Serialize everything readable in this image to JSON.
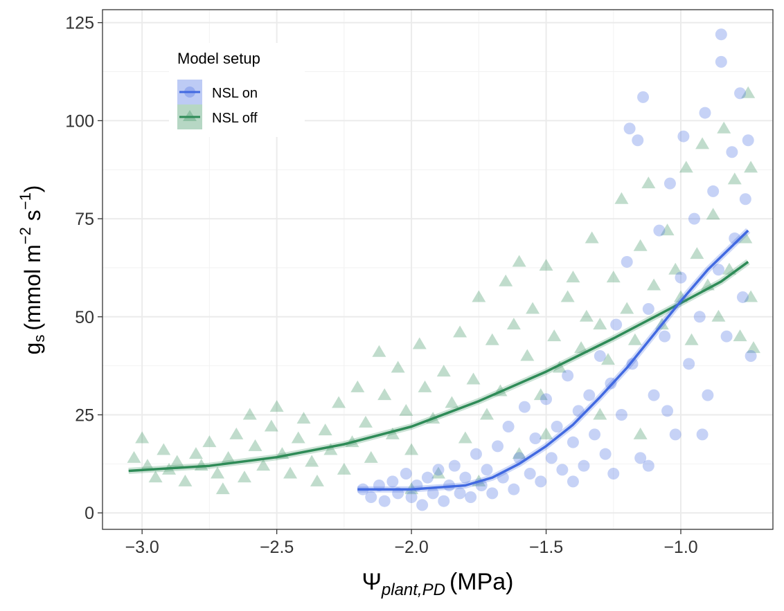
{
  "chart_data": {
    "type": "scatter",
    "title": "",
    "xlabel": {
      "symbol": "Ψ",
      "subscript": "plant,PD",
      "unit": "(MPa)"
    },
    "ylabel": {
      "symbol": "g",
      "subscript": "s",
      "unit_pre": "(mmol m",
      "exp1": "−2",
      "mid": " s",
      "exp2": "−1",
      "unit_post": ")"
    },
    "xlim": [
      -3.147,
      -0.658
    ],
    "ylim": [
      -4.2,
      128.3
    ],
    "xticks": [
      -3.0,
      -2.5,
      -2.0,
      -1.5,
      -1.0
    ],
    "xtick_labels": [
      "−3.0",
      "−2.5",
      "−2.0",
      "−1.5",
      "−1.0"
    ],
    "yticks": [
      0,
      25,
      50,
      75,
      100,
      125
    ],
    "ytick_labels": [
      "0",
      "25",
      "50",
      "75",
      "100",
      "125"
    ],
    "grid": true,
    "legend": {
      "title": "Model setup",
      "placement": "top-left"
    },
    "series": [
      {
        "name": "NSL off",
        "color": "#2E8B57",
        "marker": "triangle",
        "fit": [
          [
            -3.05,
            10.7
          ],
          [
            -2.75,
            12
          ],
          [
            -2.5,
            14.2
          ],
          [
            -2.25,
            17.5
          ],
          [
            -2.0,
            22
          ],
          [
            -1.75,
            28.5
          ],
          [
            -1.5,
            36
          ],
          [
            -1.25,
            44.5
          ],
          [
            -1.0,
            53.5
          ],
          [
            -0.85,
            59
          ],
          [
            -0.75,
            64
          ]
        ],
        "points": [
          [
            -3.03,
            14
          ],
          [
            -3.0,
            19
          ],
          [
            -2.98,
            12
          ],
          [
            -2.95,
            9
          ],
          [
            -2.92,
            16
          ],
          [
            -2.9,
            11
          ],
          [
            -2.87,
            13
          ],
          [
            -2.84,
            8
          ],
          [
            -2.8,
            15
          ],
          [
            -2.78,
            12
          ],
          [
            -2.75,
            18
          ],
          [
            -2.72,
            10
          ],
          [
            -2.7,
            6
          ],
          [
            -2.68,
            14
          ],
          [
            -2.65,
            20
          ],
          [
            -2.62,
            9
          ],
          [
            -2.6,
            25
          ],
          [
            -2.58,
            17
          ],
          [
            -2.55,
            12
          ],
          [
            -2.52,
            22
          ],
          [
            -2.5,
            27
          ],
          [
            -2.48,
            15
          ],
          [
            -2.45,
            10
          ],
          [
            -2.42,
            19
          ],
          [
            -2.4,
            24
          ],
          [
            -2.37,
            13
          ],
          [
            -2.35,
            8
          ],
          [
            -2.32,
            21
          ],
          [
            -2.3,
            16
          ],
          [
            -2.27,
            28
          ],
          [
            -2.25,
            11
          ],
          [
            -2.22,
            18
          ],
          [
            -2.2,
            32
          ],
          [
            -2.17,
            23
          ],
          [
            -2.15,
            14
          ],
          [
            -2.12,
            41
          ],
          [
            -2.1,
            30
          ],
          [
            -2.07,
            20
          ],
          [
            -2.05,
            37
          ],
          [
            -2.02,
            26
          ],
          [
            -2.0,
            16
          ],
          [
            -1.97,
            43
          ],
          [
            -1.95,
            32
          ],
          [
            -1.92,
            24
          ],
          [
            -1.9,
            10
          ],
          [
            -1.88,
            36
          ],
          [
            -1.85,
            28
          ],
          [
            -1.82,
            46
          ],
          [
            -1.8,
            19
          ],
          [
            -1.77,
            34
          ],
          [
            -1.75,
            55
          ],
          [
            -1.72,
            25
          ],
          [
            -1.7,
            44
          ],
          [
            -1.67,
            31
          ],
          [
            -1.65,
            59
          ],
          [
            -1.62,
            48
          ],
          [
            -1.6,
            64
          ],
          [
            -1.57,
            40
          ],
          [
            -1.55,
            52
          ],
          [
            -1.52,
            30
          ],
          [
            -1.5,
            63
          ],
          [
            -1.47,
            45
          ],
          [
            -1.45,
            37
          ],
          [
            -1.42,
            55
          ],
          [
            -1.4,
            60
          ],
          [
            -1.37,
            42
          ],
          [
            -1.35,
            50
          ],
          [
            -1.33,
            70
          ],
          [
            -1.3,
            48
          ],
          [
            -1.27,
            39
          ],
          [
            -1.25,
            60
          ],
          [
            -1.22,
            80
          ],
          [
            -1.2,
            52
          ],
          [
            -1.17,
            44
          ],
          [
            -1.15,
            68
          ],
          [
            -1.12,
            84
          ],
          [
            -1.1,
            58
          ],
          [
            -1.07,
            48
          ],
          [
            -1.05,
            72
          ],
          [
            -1.02,
            62
          ],
          [
            -1.0,
            55
          ],
          [
            -0.98,
            88
          ],
          [
            -0.96,
            44
          ],
          [
            -0.94,
            66
          ],
          [
            -0.92,
            94
          ],
          [
            -0.9,
            58
          ],
          [
            -0.88,
            76
          ],
          [
            -0.86,
            50
          ],
          [
            -0.84,
            98
          ],
          [
            -0.82,
            62
          ],
          [
            -0.8,
            85
          ],
          [
            -0.78,
            45
          ],
          [
            -0.76,
            70
          ],
          [
            -0.75,
            107
          ],
          [
            -0.74,
            55
          ],
          [
            -0.74,
            88
          ],
          [
            -0.73,
            42
          ],
          [
            -1.15,
            20
          ],
          [
            -1.3,
            25
          ],
          [
            -1.5,
            20
          ],
          [
            -1.6,
            15
          ],
          [
            -1.75,
            8
          ],
          [
            -2.0,
            6
          ]
        ]
      },
      {
        "name": "NSL on",
        "color": "#4169E1",
        "marker": "circle",
        "fit": [
          [
            -2.2,
            6
          ],
          [
            -2.0,
            6
          ],
          [
            -1.8,
            7
          ],
          [
            -1.7,
            9
          ],
          [
            -1.6,
            12.5
          ],
          [
            -1.5,
            17
          ],
          [
            -1.4,
            22.5
          ],
          [
            -1.3,
            29.5
          ],
          [
            -1.2,
            37
          ],
          [
            -1.1,
            45.5
          ],
          [
            -1.0,
            54
          ],
          [
            -0.9,
            62
          ],
          [
            -0.75,
            72
          ]
        ],
        "points": [
          [
            -2.18,
            6
          ],
          [
            -2.15,
            4
          ],
          [
            -2.12,
            7
          ],
          [
            -2.1,
            3
          ],
          [
            -2.07,
            8
          ],
          [
            -2.05,
            5
          ],
          [
            -2.02,
            10
          ],
          [
            -2.0,
            4
          ],
          [
            -1.98,
            7
          ],
          [
            -1.96,
            2
          ],
          [
            -1.94,
            9
          ],
          [
            -1.92,
            5
          ],
          [
            -1.9,
            11
          ],
          [
            -1.88,
            3
          ],
          [
            -1.86,
            7
          ],
          [
            -1.84,
            12
          ],
          [
            -1.82,
            5
          ],
          [
            -1.8,
            9
          ],
          [
            -1.78,
            4
          ],
          [
            -1.76,
            15
          ],
          [
            -1.74,
            7
          ],
          [
            -1.72,
            11
          ],
          [
            -1.7,
            5
          ],
          [
            -1.68,
            17
          ],
          [
            -1.66,
            9
          ],
          [
            -1.64,
            22
          ],
          [
            -1.62,
            6
          ],
          [
            -1.6,
            14
          ],
          [
            -1.58,
            27
          ],
          [
            -1.56,
            10
          ],
          [
            -1.54,
            19
          ],
          [
            -1.52,
            8
          ],
          [
            -1.5,
            29
          ],
          [
            -1.48,
            14
          ],
          [
            -1.46,
            22
          ],
          [
            -1.44,
            11
          ],
          [
            -1.42,
            35
          ],
          [
            -1.4,
            18
          ],
          [
            -1.38,
            26
          ],
          [
            -1.36,
            12
          ],
          [
            -1.34,
            30
          ],
          [
            -1.32,
            20
          ],
          [
            -1.3,
            40
          ],
          [
            -1.28,
            15
          ],
          [
            -1.26,
            33
          ],
          [
            -1.24,
            48
          ],
          [
            -1.22,
            25
          ],
          [
            -1.2,
            64
          ],
          [
            -1.19,
            98
          ],
          [
            -1.18,
            38
          ],
          [
            -1.16,
            95
          ],
          [
            -1.15,
            14
          ],
          [
            -1.14,
            106
          ],
          [
            -1.12,
            52
          ],
          [
            -1.1,
            30
          ],
          [
            -1.08,
            72
          ],
          [
            -1.06,
            45
          ],
          [
            -1.04,
            84
          ],
          [
            -1.02,
            20
          ],
          [
            -1.0,
            60
          ],
          [
            -0.99,
            96
          ],
          [
            -0.97,
            38
          ],
          [
            -0.95,
            75
          ],
          [
            -0.93,
            50
          ],
          [
            -0.91,
            102
          ],
          [
            -0.9,
            30
          ],
          [
            -0.88,
            82
          ],
          [
            -0.86,
            62
          ],
          [
            -0.85,
            122
          ],
          [
            -0.85,
            115
          ],
          [
            -0.83,
            45
          ],
          [
            -0.81,
            92
          ],
          [
            -0.8,
            70
          ],
          [
            -0.78,
            107
          ],
          [
            -0.77,
            55
          ],
          [
            -0.75,
            95
          ],
          [
            -0.74,
            40
          ],
          [
            -0.76,
            80
          ],
          [
            -0.92,
            20
          ],
          [
            -1.05,
            26
          ],
          [
            -1.12,
            12
          ],
          [
            -1.25,
            10
          ],
          [
            -1.4,
            8
          ]
        ]
      }
    ]
  }
}
